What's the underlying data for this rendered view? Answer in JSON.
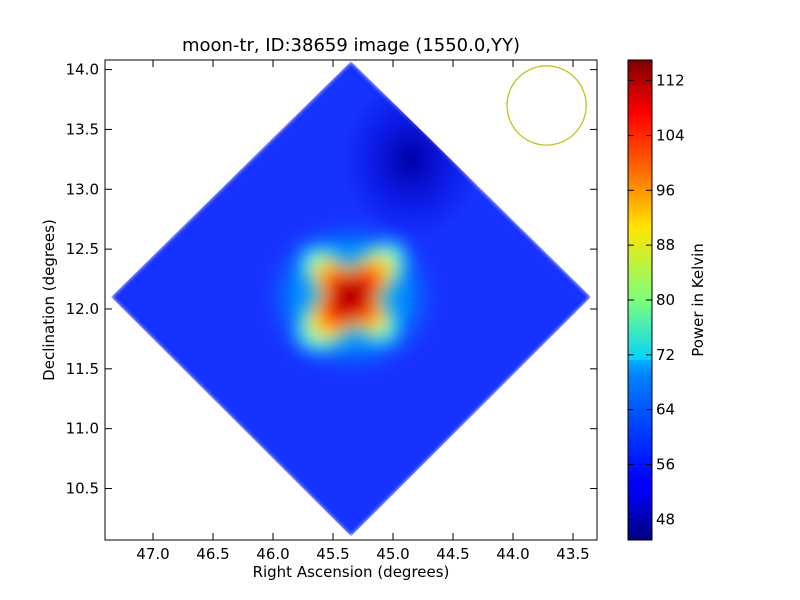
{
  "chart_data": {
    "type": "heatmap",
    "title": "moon-tr, ID:38659 image (1550.0,YY)",
    "xlabel": "Right Ascension (degrees)",
    "ylabel": "Declination (degrees)",
    "colorbar_label": "Power in Kelvin",
    "colormap": "jet",
    "grid": false,
    "x_inverted": true,
    "xlim": [
      47.4,
      43.3
    ],
    "ylim": [
      10.07,
      14.08
    ],
    "xticks": [
      47.0,
      46.5,
      46.0,
      45.5,
      45.0,
      44.5,
      44.0,
      43.5
    ],
    "xtick_labels": [
      "47.0",
      "46.5",
      "46.0",
      "45.5",
      "45.0",
      "44.5",
      "44.0",
      "43.5"
    ],
    "yticks": [
      10.5,
      11.0,
      11.5,
      12.0,
      12.5,
      13.0,
      13.5,
      14.0
    ],
    "ytick_labels": [
      "10.5",
      "11.0",
      "11.5",
      "12.0",
      "12.5",
      "13.0",
      "13.5",
      "14.0"
    ],
    "colorbar_range": [
      45,
      115
    ],
    "colorbar_ticks": [
      48,
      56,
      64,
      72,
      80,
      88,
      96,
      104,
      112
    ],
    "colorbar_tick_labels": [
      "48",
      "56",
      "64",
      "72",
      "80",
      "88",
      "96",
      "104",
      "112"
    ],
    "image_footprint": {
      "shape": "diamond",
      "vertices": [
        {
          "ra": 45.35,
          "dec": 14.07
        },
        {
          "ra": 43.35,
          "dec": 12.1
        },
        {
          "ra": 45.35,
          "dec": 10.1
        },
        {
          "ra": 47.35,
          "dec": 12.1
        }
      ]
    },
    "background_level_K": 55,
    "source": {
      "ra": 45.35,
      "dec": 12.1,
      "peak_K": 114,
      "morphology": "four-armed X shape with long NE-SW and shorter NW-SE arms",
      "halo_level_K": 64
    },
    "dark_region": {
      "ra": 44.85,
      "dec": 13.25,
      "level_K": 47
    },
    "beam_circle": {
      "ra": 43.72,
      "dec": 13.7,
      "radius_deg": 0.33,
      "color": "#bfbf00"
    }
  },
  "colors": {
    "background": "#ffffff",
    "axes": "#000000",
    "beam": "#bfbf00"
  }
}
